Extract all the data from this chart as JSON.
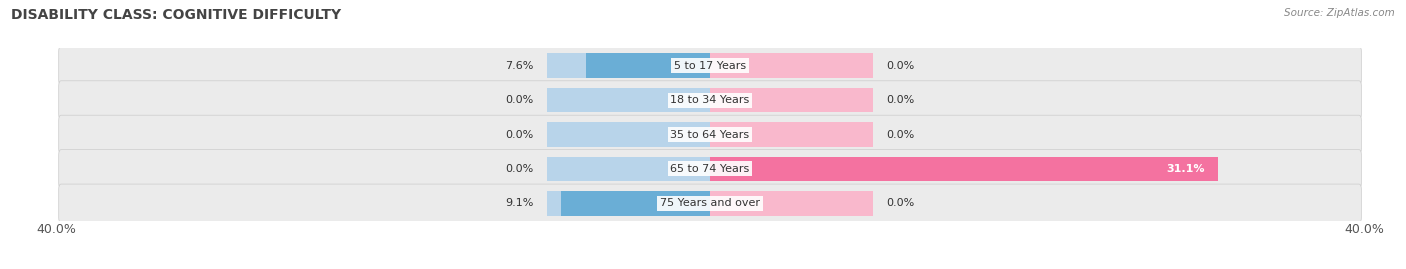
{
  "title": "DISABILITY CLASS: COGNITIVE DIFFICULTY",
  "source": "Source: ZipAtlas.com",
  "categories": [
    "5 to 17 Years",
    "18 to 34 Years",
    "35 to 64 Years",
    "65 to 74 Years",
    "75 Years and over"
  ],
  "male_values": [
    7.6,
    0.0,
    0.0,
    0.0,
    9.1
  ],
  "female_values": [
    0.0,
    0.0,
    0.0,
    31.1,
    0.0
  ],
  "max_val": 40.0,
  "male_color": "#6aaed6",
  "female_color": "#f472a0",
  "male_light": "#b8d4ea",
  "female_light": "#f9b8cc",
  "row_bg_light": "#ebebeb",
  "row_bg_dark": "#e0e0e0",
  "title_fontsize": 10,
  "label_fontsize": 8,
  "value_fontsize": 8,
  "tick_fontsize": 9,
  "legend_fontsize": 9
}
